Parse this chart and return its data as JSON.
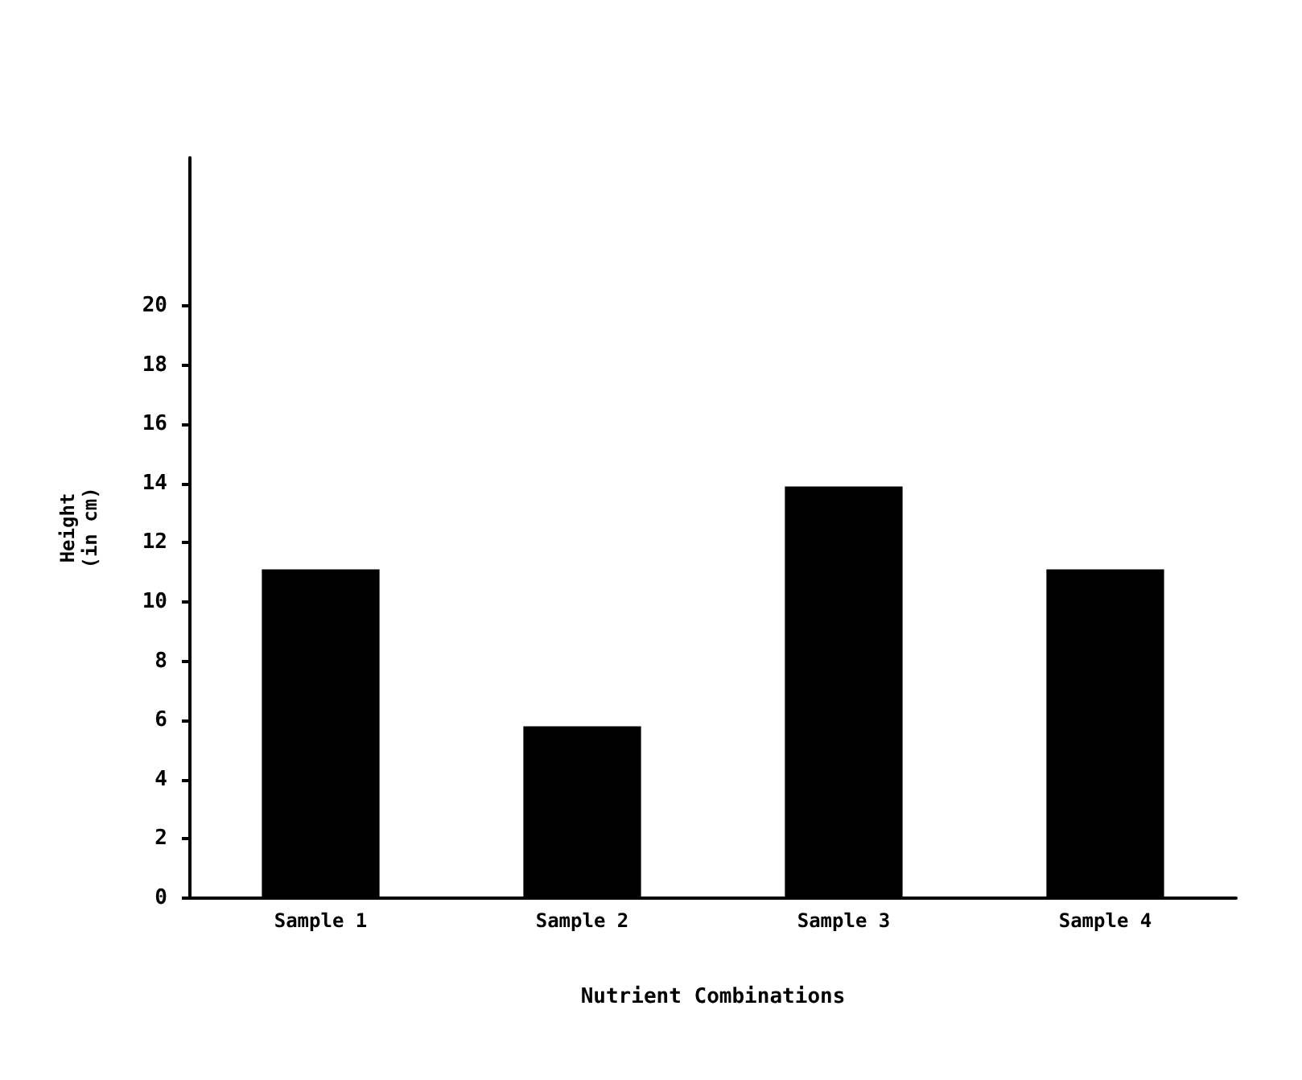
{
  "chart_data": {
    "type": "bar",
    "xlabel": "Nutrient Combinations",
    "ylabel": "Height\n(in cm)",
    "categories": [
      "Sample 1",
      "Sample 2",
      "Sample 3",
      "Sample 4"
    ],
    "values": [
      11.1,
      5.8,
      13.9,
      11.1
    ],
    "color": "#000000",
    "ylim": [
      0,
      25
    ],
    "yticks": [
      0,
      2,
      4,
      6,
      8,
      10,
      12,
      14,
      16,
      18,
      20
    ],
    "grid": false
  }
}
